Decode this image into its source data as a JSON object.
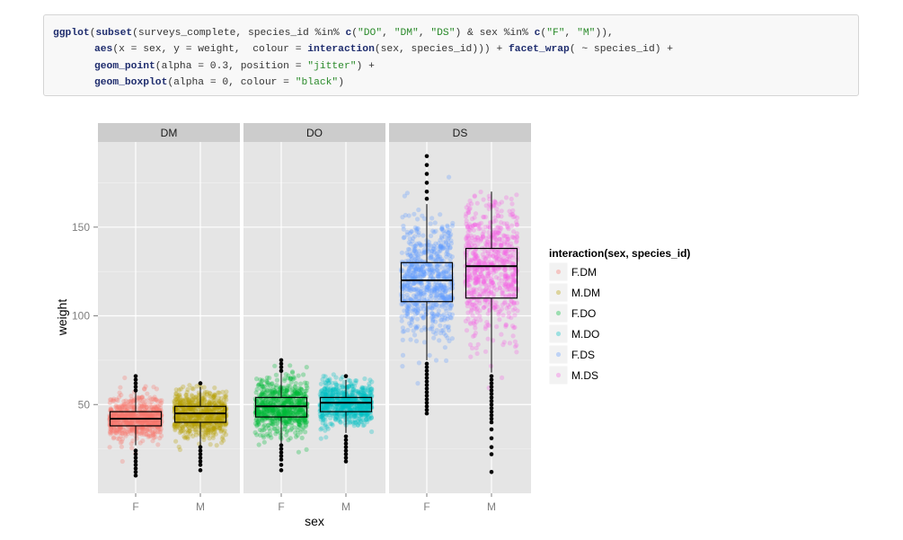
{
  "code": {
    "lines": [
      [
        {
          "t": "ggplot",
          "k": "kw"
        },
        {
          "t": "("
        },
        {
          "t": "subset",
          "k": "kw"
        },
        {
          "t": "(surveys_complete, species_id %in% "
        },
        {
          "t": "c",
          "k": "kw"
        },
        {
          "t": "("
        },
        {
          "t": "\"DO\"",
          "k": "str"
        },
        {
          "t": ", "
        },
        {
          "t": "\"DM\"",
          "k": "str"
        },
        {
          "t": ", "
        },
        {
          "t": "\"DS\"",
          "k": "str"
        },
        {
          "t": ") & sex %in% "
        },
        {
          "t": "c",
          "k": "kw"
        },
        {
          "t": "("
        },
        {
          "t": "\"F\"",
          "k": "str"
        },
        {
          "t": ", "
        },
        {
          "t": "\"M\"",
          "k": "str"
        },
        {
          "t": ")),"
        }
      ],
      [
        {
          "t": "aes",
          "k": "kw"
        },
        {
          "t": "(x = sex, y = weight,  colour = "
        },
        {
          "t": "interaction",
          "k": "kw"
        },
        {
          "t": "(sex, species_id))) + "
        },
        {
          "t": "facet_wrap",
          "k": "kw"
        },
        {
          "t": "( ~ species_id) +"
        }
      ],
      [
        {
          "t": "geom_point",
          "k": "kw"
        },
        {
          "t": "(alpha = 0.3, position = "
        },
        {
          "t": "\"jitter\"",
          "k": "str"
        },
        {
          "t": ") +"
        }
      ],
      [
        {
          "t": "geom_boxplot",
          "k": "kw"
        },
        {
          "t": "(alpha = 0, colour = "
        },
        {
          "t": "\"black\"",
          "k": "str"
        },
        {
          "t": ")"
        }
      ]
    ]
  },
  "chart_data": {
    "type": "scatter",
    "subtype": "faceted jittered points with boxplots",
    "xlabel": "sex",
    "ylabel": "weight",
    "ylim": [
      0,
      198
    ],
    "yticks": [
      50,
      100,
      150
    ],
    "grid": true,
    "legend": {
      "title": "interaction(sex, species_id)",
      "position": "right",
      "entries": [
        {
          "label": "F.DM",
          "color": "#F8766D"
        },
        {
          "label": "M.DM",
          "color": "#B79F00"
        },
        {
          "label": "F.DO",
          "color": "#00BA38"
        },
        {
          "label": "M.DO",
          "color": "#00BFC4"
        },
        {
          "label": "F.DS",
          "color": "#619CFF"
        },
        {
          "label": "M.DS",
          "color": "#F564E3"
        }
      ]
    },
    "facets": [
      {
        "name": "DM",
        "groups": [
          {
            "x": "F",
            "color": "#F8766D",
            "range": [
              10,
              66
            ],
            "box": {
              "q1": 38,
              "median": 42,
              "q3": 46,
              "wlo": 27,
              "whi": 57
            },
            "outliers": [
              10,
              12,
              14,
              16,
              18,
              20,
              22,
              24,
              58,
              60,
              62,
              64,
              66
            ]
          },
          {
            "x": "M",
            "color": "#B79F00",
            "range": [
              12,
              62
            ],
            "box": {
              "q1": 40,
              "median": 45,
              "q3": 49,
              "wlo": 27,
              "whi": 60
            },
            "outliers": [
              13,
              16,
              18,
              20,
              22,
              24,
              26,
              62
            ]
          }
        ]
      },
      {
        "name": "DO",
        "groups": [
          {
            "x": "F",
            "color": "#00BA38",
            "range": [
              12,
              76
            ],
            "box": {
              "q1": 43,
              "median": 49,
              "q3": 54,
              "wlo": 28,
              "whi": 68
            },
            "outliers": [
              13,
              16,
              19,
              21,
              23,
              25,
              27,
              69,
              71,
              73,
              75
            ]
          },
          {
            "x": "M",
            "color": "#00BFC4",
            "range": [
              18,
              67
            ],
            "box": {
              "q1": 46,
              "median": 51,
              "q3": 54,
              "wlo": 34,
              "whi": 64
            },
            "outliers": [
              18,
              20,
              22,
              24,
              26,
              28,
              30,
              32,
              66
            ]
          }
        ]
      },
      {
        "name": "DS",
        "groups": [
          {
            "x": "F",
            "color": "#619CFF",
            "range": [
              44,
              190
            ],
            "box": {
              "q1": 108,
              "median": 120,
              "q3": 130,
              "wlo": 75,
              "whi": 163
            },
            "outliers": [
              45,
              47,
              49,
              51,
              53,
              55,
              57,
              59,
              61,
              63,
              65,
              67,
              69,
              71,
              73,
              166,
              170,
              175,
              180,
              185,
              190
            ]
          },
          {
            "x": "M",
            "color": "#F564E3",
            "range": [
              12,
              170
            ],
            "box": {
              "q1": 110,
              "median": 128,
              "q3": 138,
              "wlo": 68,
              "whi": 170
            },
            "outliers": [
              12,
              22,
              26,
              31,
              36,
              40,
              42,
              44,
              46,
              48,
              50,
              52,
              54,
              56,
              58,
              60,
              62,
              64,
              66
            ]
          }
        ]
      }
    ]
  }
}
